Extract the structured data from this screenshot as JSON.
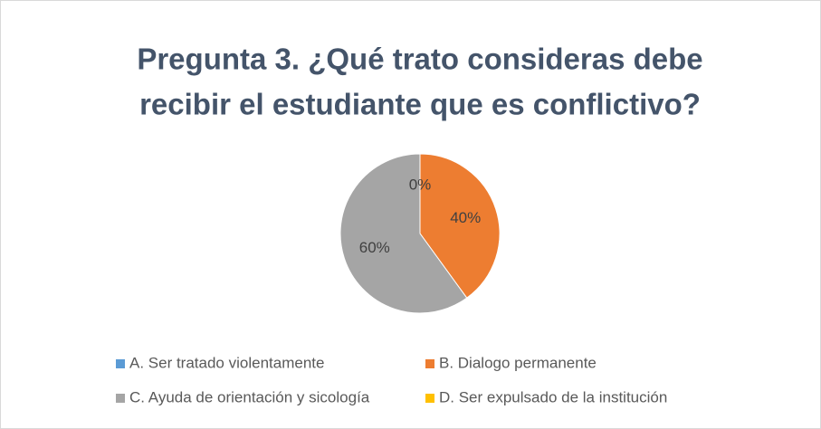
{
  "chart_data": {
    "type": "pie",
    "title_lines": [
      "Pregunta 3. ¿Qué trato consideras debe",
      "recibir el estudiante que es conflictivo?"
    ],
    "categories": [
      "A. Ser tratado violentamente",
      "B. Dialogo permanente",
      "C. Ayuda de orientación y sicología",
      "D. Ser expulsado de la institución"
    ],
    "values": [
      0,
      40,
      60,
      0
    ],
    "value_labels": [
      "0%",
      "40%",
      "60%",
      null
    ],
    "colors": [
      "#5b9bd5",
      "#ed7d31",
      "#a5a5a5",
      "#ffc000"
    ],
    "legend": "bottom"
  }
}
